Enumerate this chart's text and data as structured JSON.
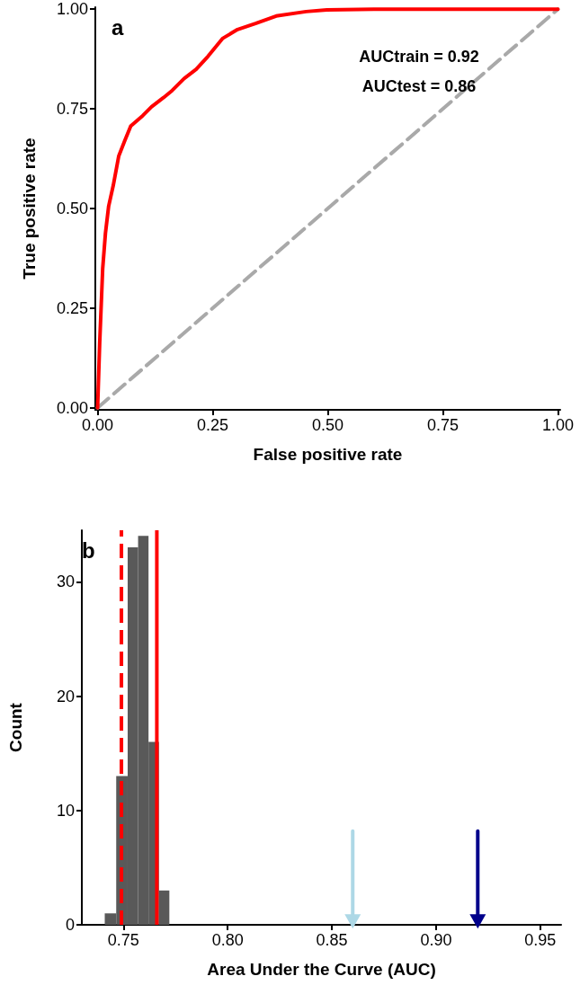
{
  "chart_data": [
    {
      "type": "line",
      "xlabel": "False positive rate",
      "ylabel": "True positive rate",
      "marker": "none",
      "annotations": [
        "a",
        "AUCtrain = 0.92",
        "AUCtest = 0.86"
      ],
      "xlim": [
        -0.005,
        1.005
      ],
      "ylim": [
        -0.005,
        1.005
      ],
      "xticks": [
        {
          "value": 0,
          "label": "0.00"
        },
        {
          "value": 0.25,
          "label": "0.25"
        },
        {
          "value": 0.5,
          "label": "0.50"
        },
        {
          "value": 0.75,
          "label": "0.75"
        },
        {
          "value": 1,
          "label": "1.00"
        }
      ],
      "yticks": [
        {
          "value": 0,
          "label": "0.00"
        },
        {
          "value": 0.25,
          "label": "0.25"
        },
        {
          "value": 0.5,
          "label": "0.50"
        },
        {
          "value": 0.75,
          "label": "0.75"
        },
        {
          "value": 1,
          "label": "1.00"
        }
      ],
      "series": [
        {
          "color": "#ff0000",
          "line_style": "solid",
          "x": [
            0,
            0.0045,
            0.011,
            0.017,
            0.024,
            0.034,
            0.046,
            0.059,
            0.072,
            0.098,
            0.117,
            0.143,
            0.162,
            0.188,
            0.214,
            0.24,
            0.272,
            0.304,
            0.343,
            0.388,
            0.453,
            0.498,
            0.6,
            1.0
          ],
          "values": [
            0,
            0.163,
            0.349,
            0.438,
            0.506,
            0.558,
            0.632,
            0.67,
            0.707,
            0.733,
            0.755,
            0.778,
            0.796,
            0.826,
            0.849,
            0.882,
            0.927,
            0.949,
            0.964,
            0.983,
            0.994,
            0.998,
            1.0,
            1.0
          ]
        },
        {
          "color": "#a9a9a9",
          "line_style": "dashed",
          "x": [
            0,
            1
          ],
          "values": [
            0,
            1
          ]
        }
      ]
    },
    {
      "type": "histogram",
      "xlabel": "Area Under the Curve (AUC)",
      "ylabel": "Count",
      "color": "#595959",
      "annotations": [
        "b"
      ],
      "bins": [
        0.741,
        0.7465,
        0.752,
        0.757,
        0.762,
        0.767,
        0.772
      ],
      "values": [
        1,
        13,
        33,
        34,
        16,
        3
      ],
      "xlim": [
        0.73,
        0.96
      ],
      "ylim": [
        0,
        34.5
      ],
      "xticks": [
        {
          "value": 0.75,
          "label": "0.75"
        },
        {
          "value": 0.8,
          "label": "0.80"
        },
        {
          "value": 0.85,
          "label": "0.85"
        },
        {
          "value": 0.9,
          "label": "0.90"
        },
        {
          "value": 0.95,
          "label": "0.95"
        }
      ],
      "yticks": [
        0,
        10,
        20,
        30
      ],
      "ref_lines": [
        {
          "axis": "x",
          "value": 0.749,
          "color": "#ff0000",
          "line_style": "dashed"
        },
        {
          "axis": "x",
          "value": 0.766,
          "color": "#ff0000",
          "line_style": "solid"
        }
      ],
      "series": [
        {
          "type": "line",
          "marker": "triangle",
          "line_style": "solid",
          "color": "#add8e6",
          "x": [
            0.86,
            0.86
          ],
          "values": [
            8.2,
            0.3
          ]
        },
        {
          "type": "line",
          "marker": "triangle",
          "line_style": "solid",
          "color": "#00008b",
          "x": [
            0.92,
            0.92
          ],
          "values": [
            8.2,
            0.3
          ]
        }
      ]
    }
  ]
}
